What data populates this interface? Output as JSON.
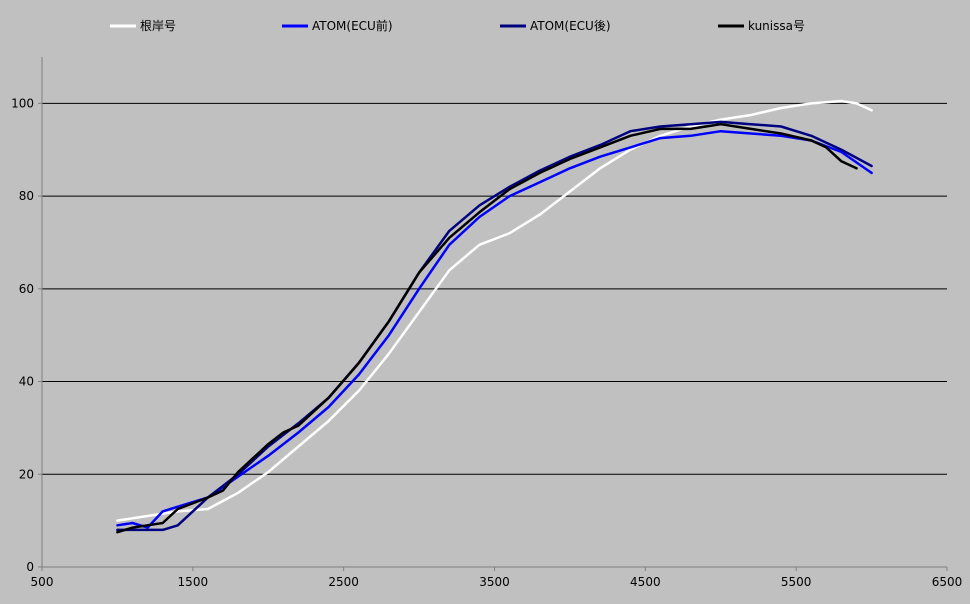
{
  "chart_data": {
    "type": "line",
    "title": "",
    "xlabel": "",
    "ylabel": "",
    "xlim": [
      500,
      6500
    ],
    "ylim": [
      0,
      110
    ],
    "x_ticks": [
      500,
      1500,
      2500,
      3500,
      4500,
      5500,
      6500
    ],
    "y_ticks": [
      0,
      20,
      40,
      60,
      80,
      100
    ],
    "grid": "horizontal",
    "legend_position": "top",
    "colors": {
      "background": "#c0c0c0",
      "grid": "#000000",
      "axis": "#808080"
    },
    "series": [
      {
        "name": "根岸号",
        "color": "#ffffff",
        "points": [
          [
            1000,
            10
          ],
          [
            1200,
            11
          ],
          [
            1400,
            12
          ],
          [
            1600,
            12.5
          ],
          [
            1800,
            16
          ],
          [
            2000,
            20.5
          ],
          [
            2200,
            26
          ],
          [
            2400,
            31.5
          ],
          [
            2600,
            38
          ],
          [
            2800,
            46
          ],
          [
            3000,
            55
          ],
          [
            3200,
            64
          ],
          [
            3400,
            69.5
          ],
          [
            3600,
            72
          ],
          [
            3800,
            76
          ],
          [
            4000,
            81
          ],
          [
            4200,
            86
          ],
          [
            4400,
            90
          ],
          [
            4600,
            93
          ],
          [
            4800,
            95
          ],
          [
            5000,
            96.5
          ],
          [
            5200,
            97.5
          ],
          [
            5400,
            99
          ],
          [
            5600,
            100
          ],
          [
            5800,
            100.5
          ],
          [
            5900,
            100
          ],
          [
            6000,
            98.5
          ]
        ]
      },
      {
        "name": "ATOM(ECU前)",
        "color": "#0000ff",
        "points": [
          [
            1000,
            9
          ],
          [
            1100,
            9.5
          ],
          [
            1200,
            8.5
          ],
          [
            1300,
            12
          ],
          [
            1400,
            13
          ],
          [
            1600,
            15
          ],
          [
            1800,
            19.5
          ],
          [
            2000,
            24
          ],
          [
            2200,
            29
          ],
          [
            2400,
            34.5
          ],
          [
            2600,
            41.5
          ],
          [
            2800,
            50
          ],
          [
            3000,
            60
          ],
          [
            3200,
            69.5
          ],
          [
            3400,
            75.5
          ],
          [
            3600,
            80
          ],
          [
            3800,
            83
          ],
          [
            4000,
            86
          ],
          [
            4200,
            88.5
          ],
          [
            4400,
            90.5
          ],
          [
            4600,
            92.5
          ],
          [
            4800,
            93
          ],
          [
            5000,
            94
          ],
          [
            5200,
            93.5
          ],
          [
            5400,
            93
          ],
          [
            5600,
            92
          ],
          [
            5800,
            89.5
          ],
          [
            6000,
            85
          ]
        ]
      },
      {
        "name": "ATOM(ECU後)",
        "color": "#000080",
        "points": [
          [
            1000,
            8
          ],
          [
            1100,
            8
          ],
          [
            1300,
            8
          ],
          [
            1400,
            9
          ],
          [
            1600,
            15
          ],
          [
            1800,
            20
          ],
          [
            2000,
            26
          ],
          [
            2200,
            31
          ],
          [
            2400,
            36.5
          ],
          [
            2600,
            44
          ],
          [
            2800,
            53
          ],
          [
            3000,
            63.5
          ],
          [
            3200,
            72.5
          ],
          [
            3400,
            78
          ],
          [
            3600,
            82
          ],
          [
            3800,
            85.5
          ],
          [
            4000,
            88.5
          ],
          [
            4200,
            91
          ],
          [
            4400,
            94
          ],
          [
            4600,
            95
          ],
          [
            4800,
            95.5
          ],
          [
            5000,
            96
          ],
          [
            5200,
            95.5
          ],
          [
            5400,
            95
          ],
          [
            5600,
            93
          ],
          [
            5800,
            90
          ],
          [
            6000,
            86.5
          ]
        ]
      },
      {
        "name": "kunissa号",
        "color": "#000000",
        "points": [
          [
            1000,
            7.5
          ],
          [
            1100,
            8.5
          ],
          [
            1200,
            9
          ],
          [
            1300,
            9.5
          ],
          [
            1400,
            12.5
          ],
          [
            1600,
            15
          ],
          [
            1700,
            16.5
          ],
          [
            1800,
            20.5
          ],
          [
            2000,
            26.5
          ],
          [
            2100,
            29
          ],
          [
            2200,
            30.5
          ],
          [
            2400,
            36.5
          ],
          [
            2600,
            44
          ],
          [
            2800,
            53
          ],
          [
            3000,
            63.5
          ],
          [
            3200,
            71
          ],
          [
            3400,
            76.5
          ],
          [
            3600,
            81.5
          ],
          [
            3800,
            85
          ],
          [
            4000,
            88
          ],
          [
            4200,
            90.5
          ],
          [
            4400,
            93
          ],
          [
            4600,
            94.5
          ],
          [
            4800,
            94.5
          ],
          [
            5000,
            95.5
          ],
          [
            5200,
            94.5
          ],
          [
            5400,
            93.5
          ],
          [
            5600,
            92
          ],
          [
            5700,
            90.5
          ],
          [
            5800,
            87.5
          ],
          [
            5900,
            86
          ]
        ]
      }
    ]
  }
}
